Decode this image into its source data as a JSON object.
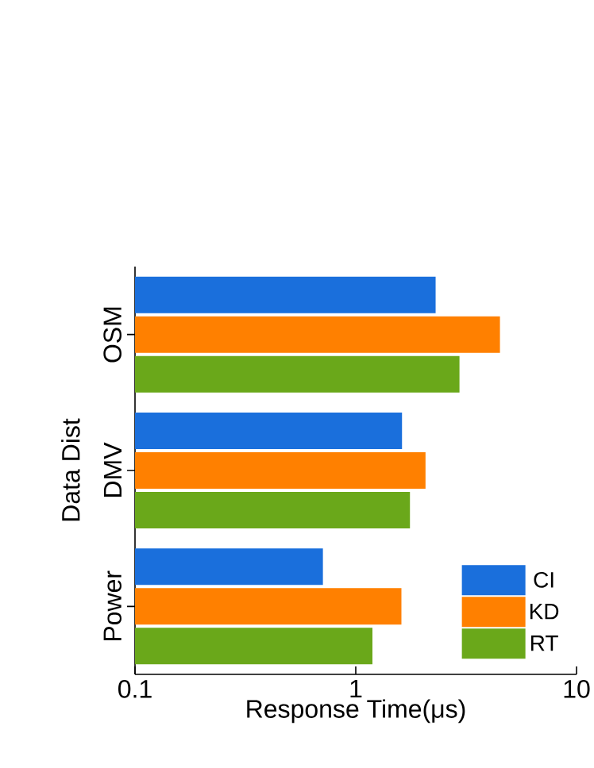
{
  "chart_data": {
    "type": "bar",
    "orientation": "horizontal",
    "xlabel": "Response Time(μs)",
    "ylabel": "Data Dist",
    "categories": [
      "OSM",
      "DMV",
      "Power"
    ],
    "series": [
      {
        "name": "CI",
        "color": "#1a6fdc",
        "values": [
          2.3,
          1.62,
          0.71
        ]
      },
      {
        "name": "KD",
        "color": "#ff8000",
        "values": [
          4.5,
          2.07,
          1.61
        ]
      },
      {
        "name": "RT",
        "color": "#6aa81a",
        "values": [
          2.95,
          1.76,
          1.19
        ]
      }
    ],
    "log": "x",
    "xlim": [
      0.1,
      10
    ],
    "xticks": [
      0.1,
      1,
      10
    ],
    "legend": "bottom right"
  }
}
